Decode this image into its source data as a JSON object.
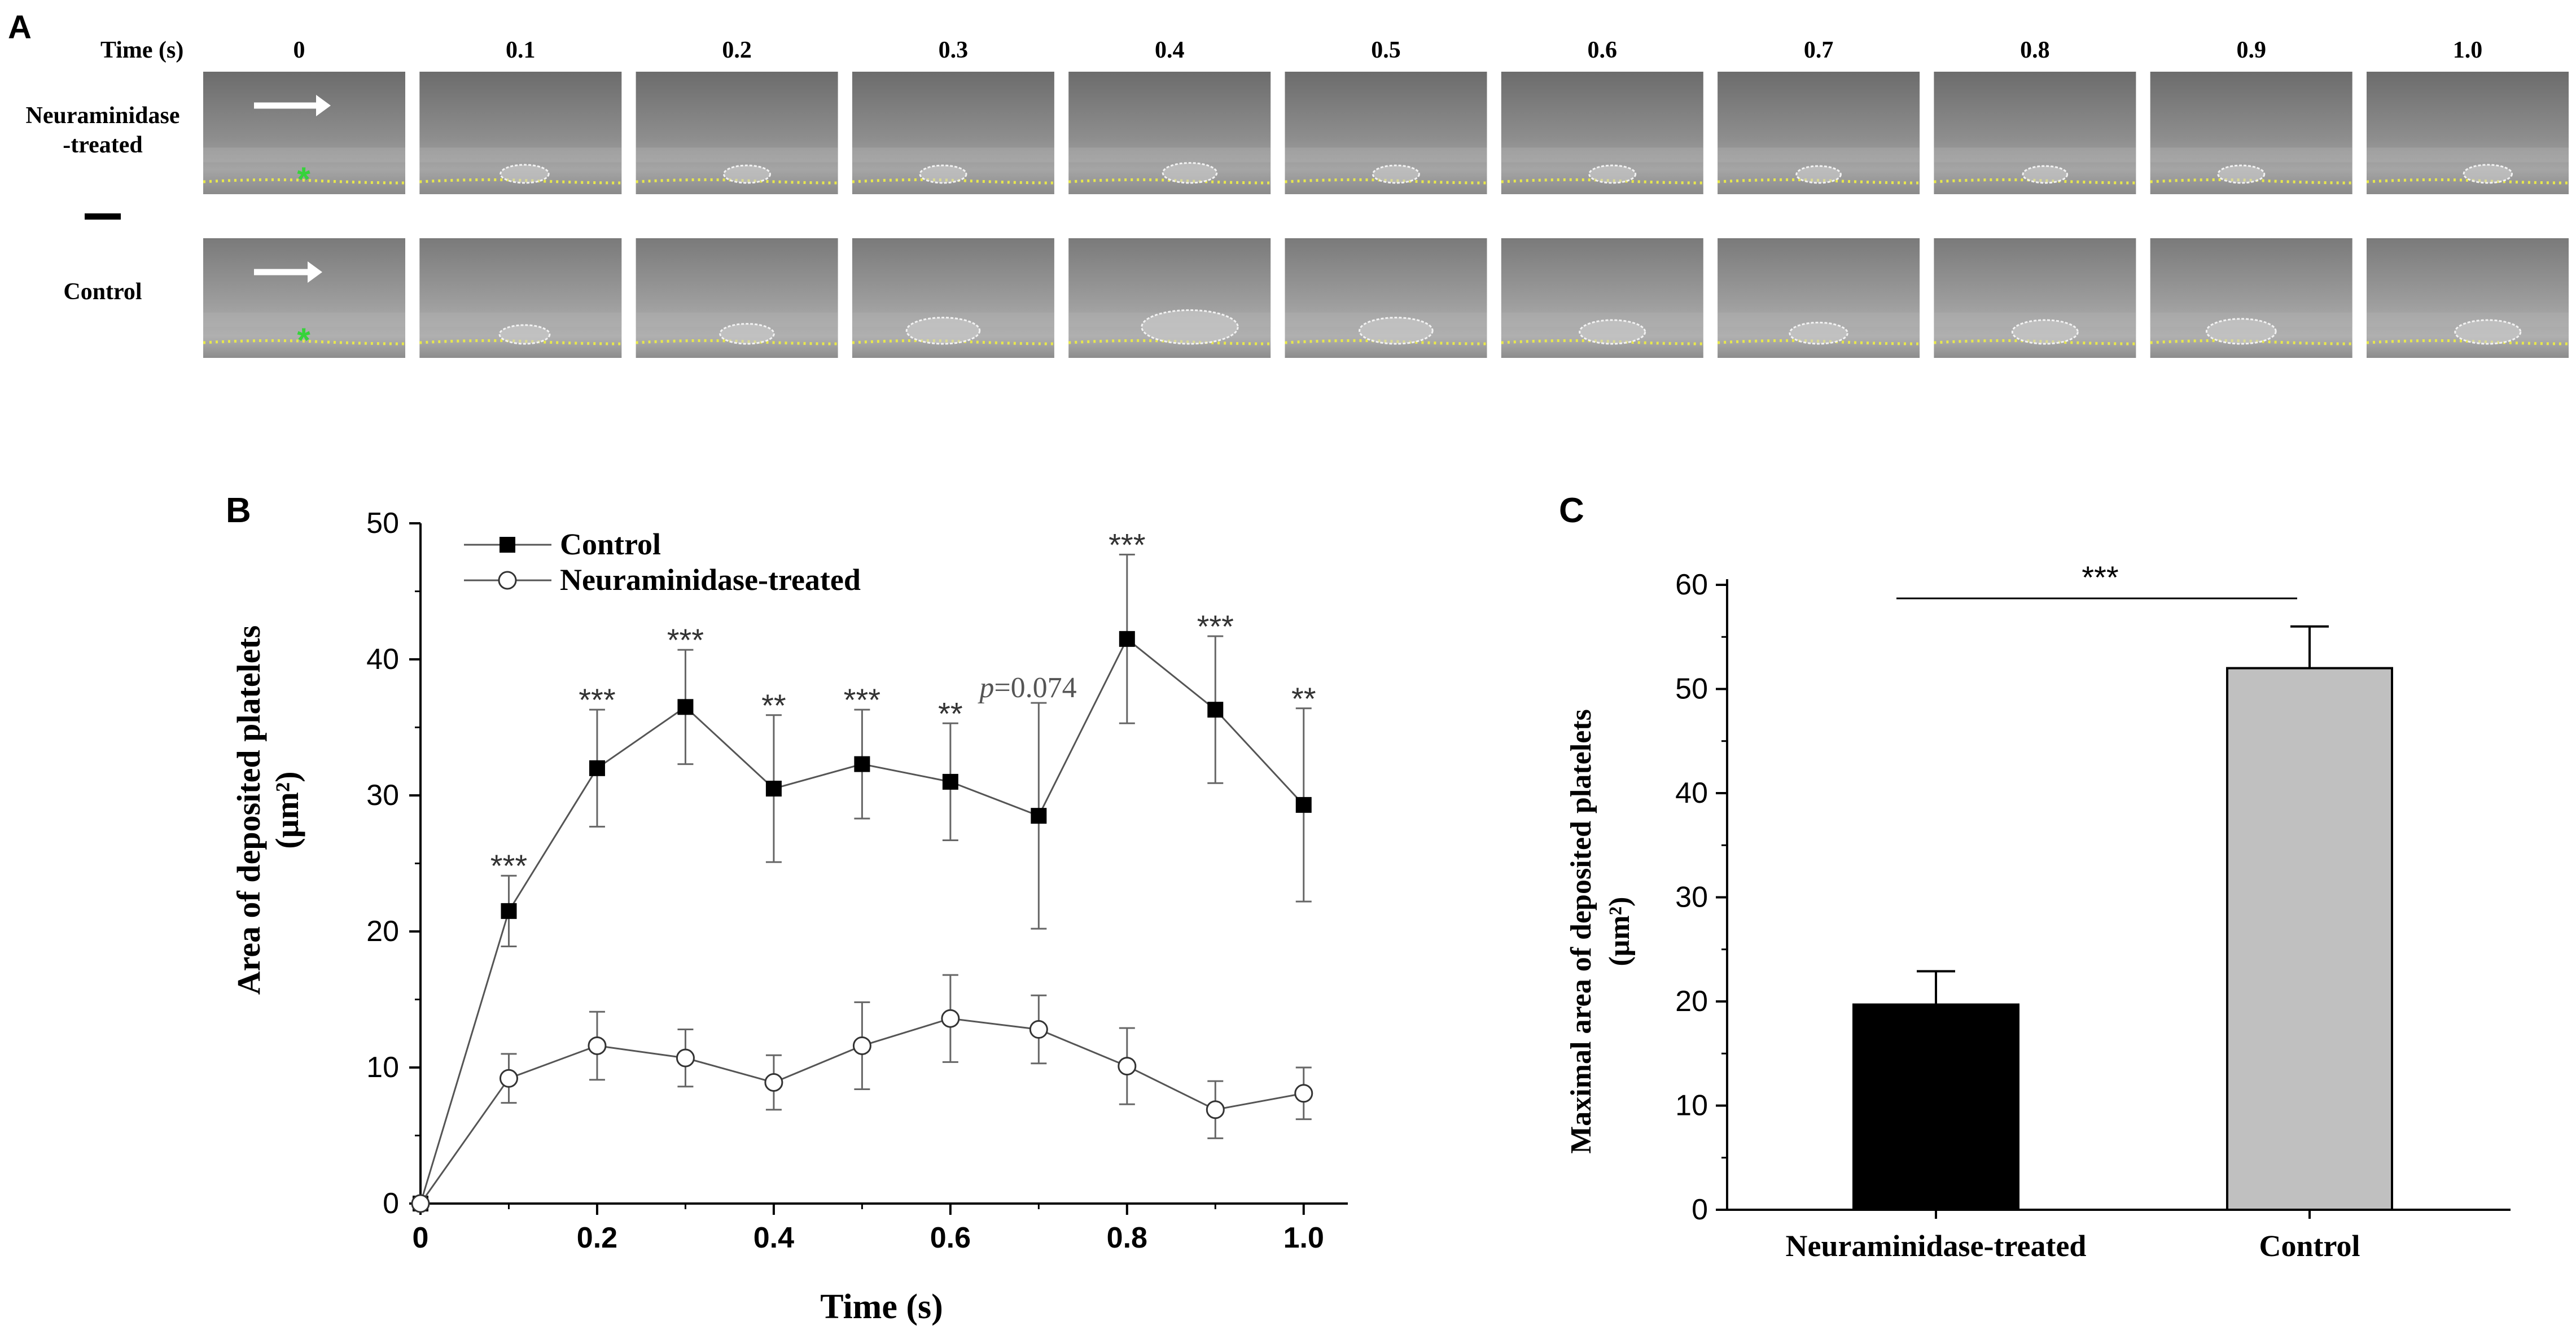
{
  "panel_a": {
    "letter": "A",
    "time_label": "Time (s)",
    "times": [
      "0",
      "0.1",
      "0.2",
      "0.3",
      "0.4",
      "0.5",
      "0.6",
      "0.7",
      "0.8",
      "0.9",
      "1.0"
    ],
    "row1_label_line1": "Neuraminidase",
    "row1_label_line2": "-treated",
    "row2_label": "Control",
    "colors": {
      "frame": "#8f8f8f",
      "dotted_line": "#e8e84a",
      "marker": "#36d33a",
      "outline": "#f2f2f2"
    }
  },
  "chart_data": [
    {
      "panel": "B",
      "type": "line",
      "title": "",
      "xlabel": "Time (s)",
      "ylabel": "Area of deposited platelets",
      "ylabel_unit": "(μm²)",
      "xlim": [
        0,
        1.05
      ],
      "ylim": [
        0,
        50
      ],
      "x": [
        0,
        0.1,
        0.2,
        0.3,
        0.4,
        0.5,
        0.6,
        0.7,
        0.8,
        0.9,
        1.0
      ],
      "x_ticks": [
        "0",
        "0.2",
        "0.4",
        "0.6",
        "0.8",
        "1.0"
      ],
      "y_ticks": [
        "0",
        "10",
        "20",
        "30",
        "40",
        "50"
      ],
      "series": [
        {
          "name": "Control",
          "marker": "filled-square",
          "values": [
            0,
            21.5,
            32,
            36.5,
            30.5,
            32.3,
            31,
            28.5,
            41.5,
            36.3,
            29.3
          ],
          "errors": [
            0,
            2.6,
            4.3,
            4.2,
            5.4,
            4.0,
            4.3,
            8.3,
            6.2,
            5.4,
            7.1
          ]
        },
        {
          "name": "Neuraminidase-treated",
          "marker": "open-circle",
          "values": [
            0,
            9.2,
            11.6,
            10.7,
            8.9,
            11.6,
            13.6,
            12.8,
            10.1,
            6.9,
            8.1
          ],
          "errors": [
            0,
            1.8,
            2.5,
            2.1,
            2.0,
            3.2,
            3.2,
            2.5,
            2.8,
            2.1,
            1.9
          ]
        }
      ],
      "annotations": [
        "",
        "***",
        "***",
        "***",
        "**",
        "***",
        "**",
        "p=0.074",
        "***",
        "***",
        "**"
      ],
      "legend": "top-left"
    },
    {
      "panel": "C",
      "type": "bar",
      "title": "",
      "xlabel": "",
      "ylabel": "Maximal area of deposited platelets",
      "ylabel_unit": "(μm²)",
      "ylim": [
        0,
        60
      ],
      "y_ticks": [
        "0",
        "10",
        "20",
        "30",
        "40",
        "50",
        "60"
      ],
      "categories": [
        "Neuraminidase-treated",
        "Control"
      ],
      "values": [
        19.7,
        52.0
      ],
      "errors": [
        3.2,
        4.0
      ],
      "bar_colors": [
        "#000000",
        "#c0c0c0"
      ],
      "significance": "***"
    }
  ],
  "panel_b": {
    "letter": "B"
  },
  "panel_c": {
    "letter": "C"
  }
}
